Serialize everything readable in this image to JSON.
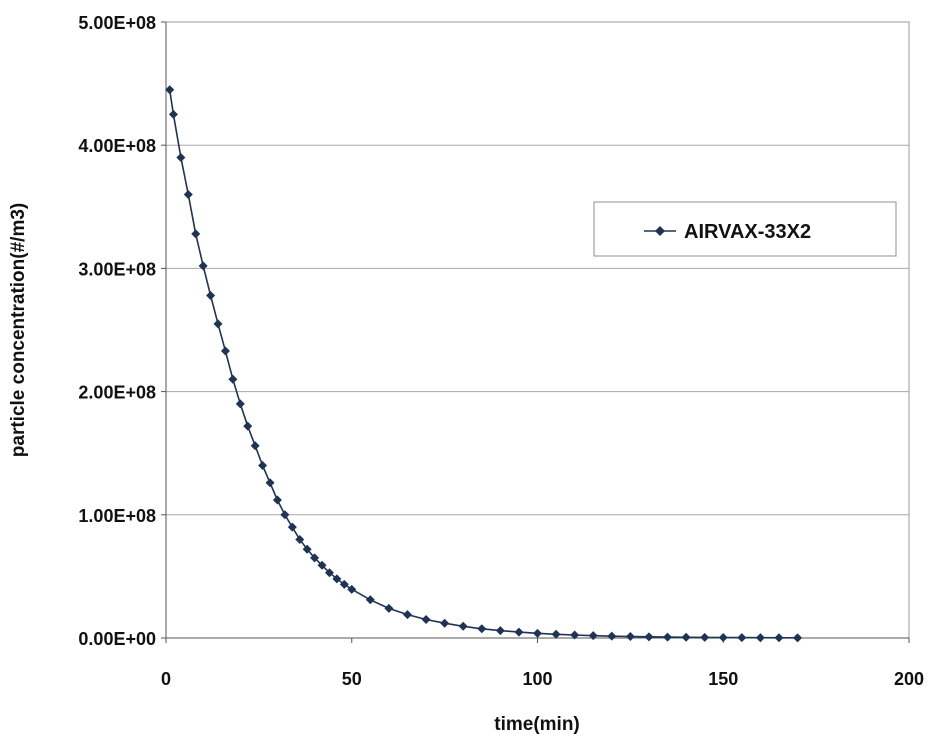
{
  "chart_data": {
    "type": "scatter",
    "title": "",
    "xlabel": "time(min)",
    "ylabel": "particle concentration(#/m3)",
    "xlim": [
      0,
      200
    ],
    "ylim": [
      0,
      500000000
    ],
    "x_ticks": [
      "0",
      "50",
      "100",
      "150",
      "200"
    ],
    "y_ticks": [
      "0.00E+00",
      "1.00E+08",
      "2.00E+08",
      "3.00E+08",
      "4.00E+08",
      "5.00E+08"
    ],
    "grid": "horizontal",
    "legend_position": "right",
    "series": [
      {
        "name": "AIRVAX-33X2",
        "color": "#1f3354",
        "marker": "diamond",
        "line": true,
        "x": [
          1,
          2,
          4,
          6,
          8,
          10,
          12,
          14,
          16,
          18,
          20,
          22,
          24,
          26,
          28,
          30,
          32,
          34,
          36,
          38,
          40,
          42,
          44,
          46,
          48,
          50,
          55,
          60,
          65,
          70,
          75,
          80,
          85,
          90,
          95,
          100,
          105,
          110,
          115,
          120,
          125,
          130,
          135,
          140,
          145,
          150,
          155,
          160,
          165,
          170
        ],
        "y": [
          445000000,
          425000000,
          390000000,
          360000000,
          328000000,
          302000000,
          278000000,
          255000000,
          233000000,
          210000000,
          190000000,
          172000000,
          156000000,
          140000000,
          126000000,
          112000000,
          100000000,
          90000000,
          80000000,
          72000000,
          65000000,
          59000000,
          53000000,
          48000000,
          43500000,
          39500000,
          31000000,
          24000000,
          19000000,
          15000000,
          12000000,
          9500000,
          7500000,
          6000000,
          4800000,
          3800000,
          3000000,
          2400000,
          1900000,
          1500000,
          1200000,
          950000,
          750000,
          600000,
          480000,
          380000,
          300000,
          240000,
          190000,
          150000
        ]
      }
    ]
  }
}
